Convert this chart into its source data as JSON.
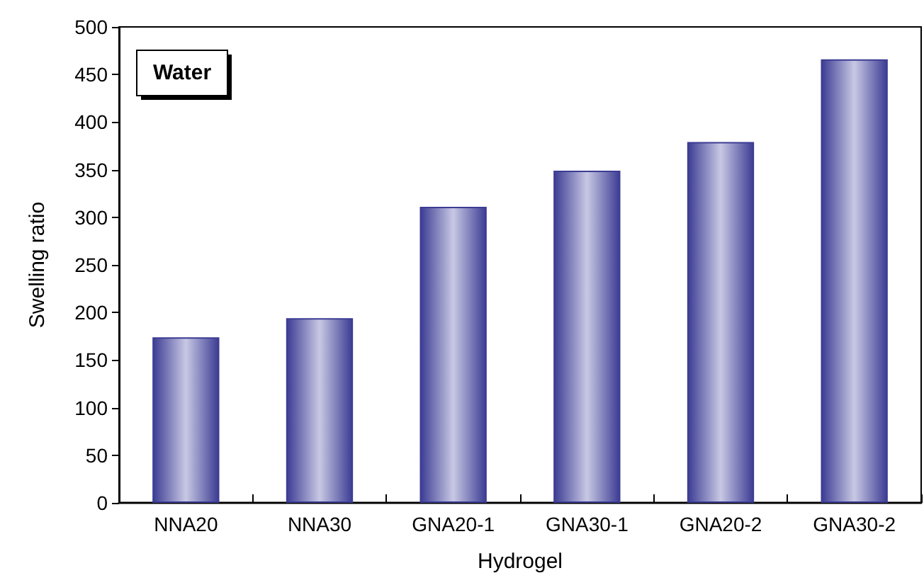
{
  "chart_data": {
    "type": "bar",
    "xlabel": "Hydrogel",
    "ylabel": "Swelling ratio",
    "categories": [
      "NNA20",
      "NNA30",
      "GNA20-1",
      "GNA30-1",
      "GNA20-2",
      "GNA30-2"
    ],
    "values": [
      174,
      194,
      311,
      349,
      379,
      466
    ],
    "color": "#3c3c94",
    "ylim": [
      0,
      500
    ],
    "yticks": [
      0,
      50,
      100,
      150,
      200,
      250,
      300,
      350,
      400,
      450,
      500
    ],
    "annotations": [
      "Water"
    ],
    "grid": false
  }
}
